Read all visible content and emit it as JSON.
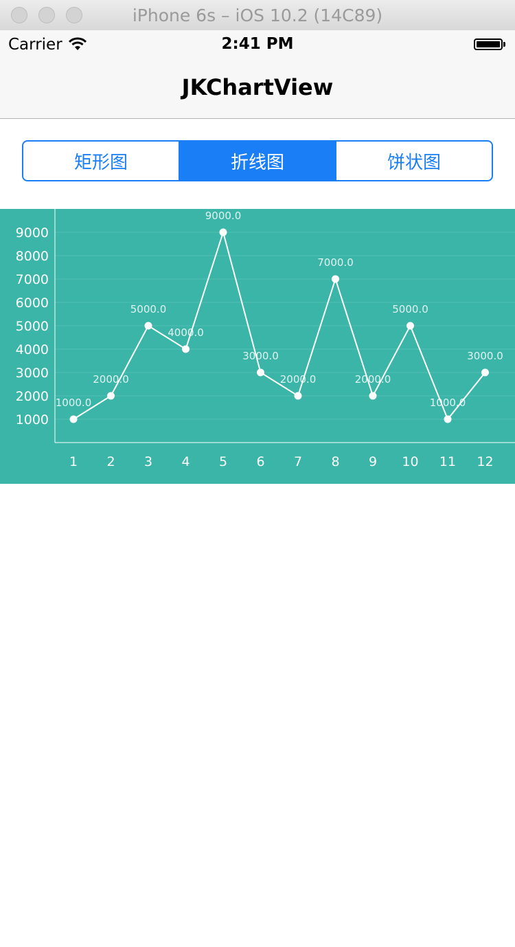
{
  "window": {
    "title": "iPhone 6s – iOS 10.2 (14C89)"
  },
  "status_bar": {
    "carrier": "Carrier",
    "time": "2:41 PM"
  },
  "nav": {
    "title": "JKChartView"
  },
  "segments": [
    {
      "label": "矩形图",
      "selected": false
    },
    {
      "label": "折线图",
      "selected": true
    },
    {
      "label": "饼状图",
      "selected": false
    }
  ],
  "colors": {
    "accent": "#1a7ef7",
    "chart_bg": "#3ab5a8",
    "chart_fg": "#ffffff"
  },
  "chart_data": {
    "type": "line",
    "categories": [
      "1",
      "2",
      "3",
      "4",
      "5",
      "6",
      "7",
      "8",
      "9",
      "10",
      "11",
      "12"
    ],
    "series": [
      {
        "values": [
          1000,
          2000,
          5000,
          4000,
          9000,
          3000,
          2000,
          7000,
          2000,
          5000,
          1000,
          3000
        ]
      }
    ],
    "data_labels": [
      "1000.0",
      "2000.0",
      "5000.0",
      "4000.0",
      "9000.0",
      "3000.0",
      "2000.0",
      "7000.0",
      "2000.0",
      "5000.0",
      "1000.0",
      "3000.0"
    ],
    "y_ticks": [
      1000,
      2000,
      3000,
      4000,
      5000,
      6000,
      7000,
      8000,
      9000
    ],
    "ylim": [
      0,
      10000
    ],
    "grid": true,
    "title": "",
    "xlabel": "",
    "ylabel": ""
  }
}
